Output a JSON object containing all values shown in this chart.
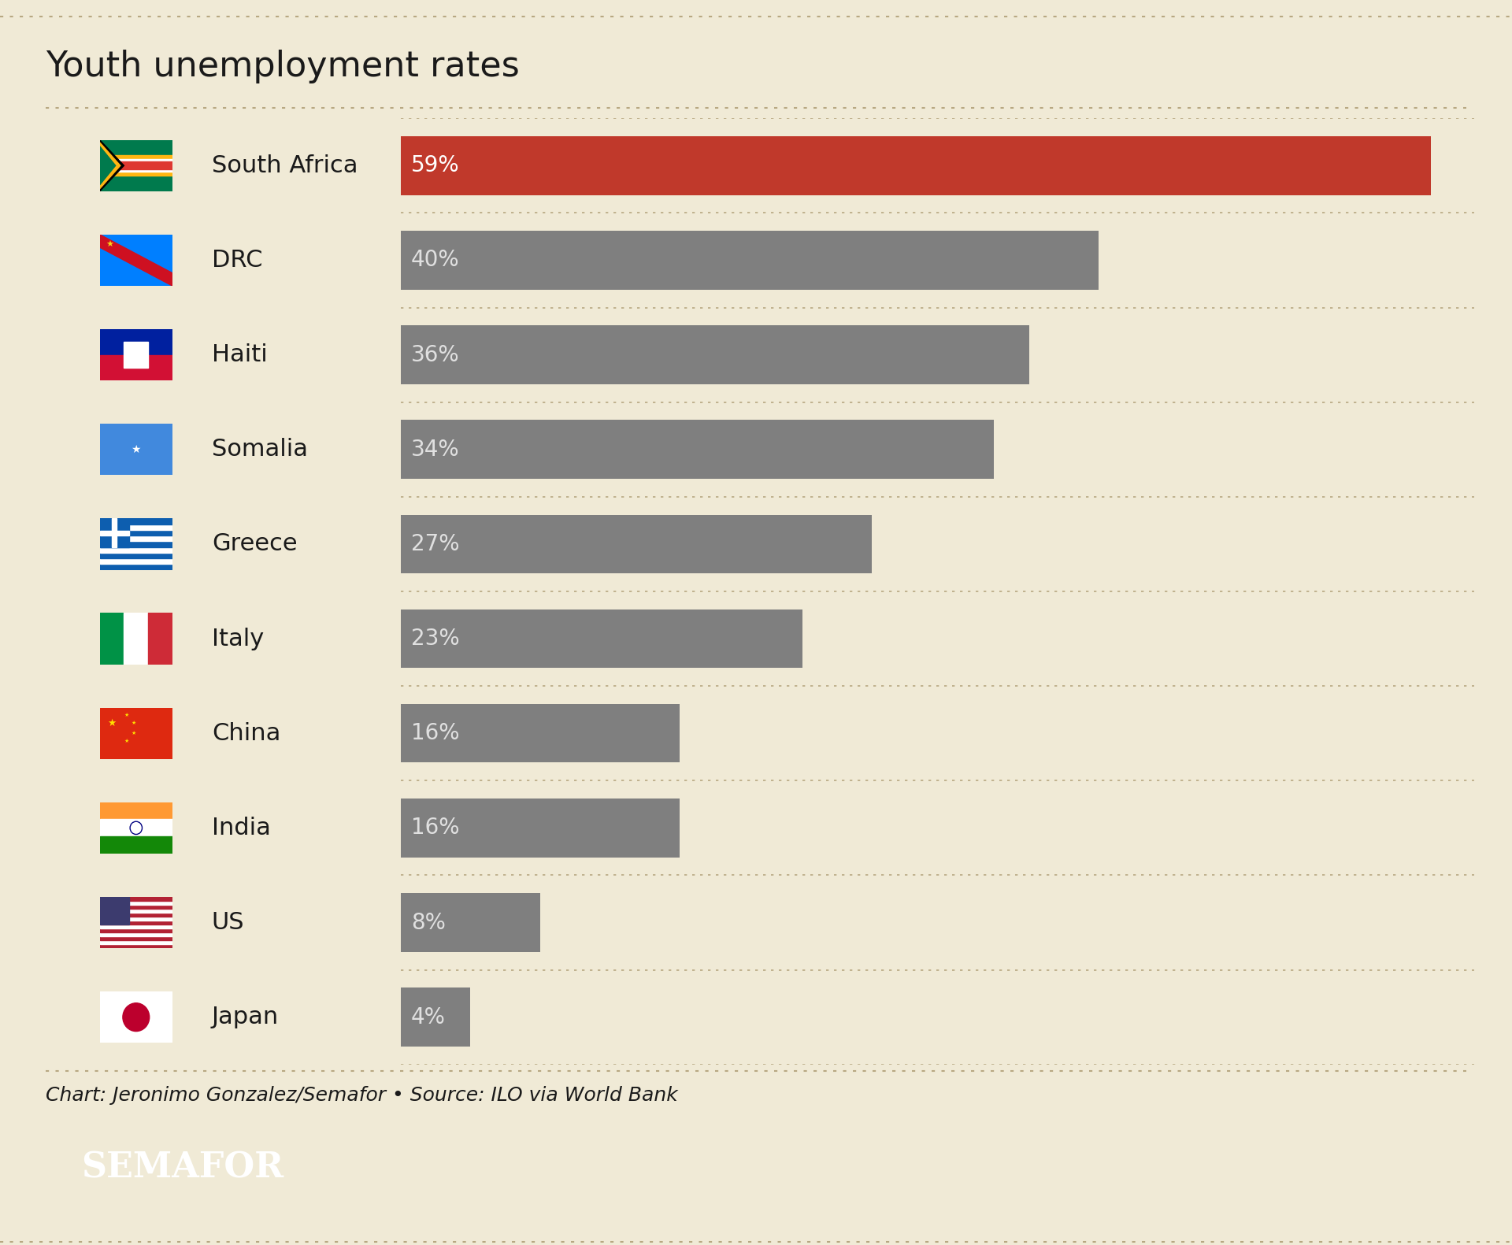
{
  "title": "Youth unemployment rates",
  "countries": [
    "South Africa",
    "DRC",
    "Haiti",
    "Somalia",
    "Greece",
    "Italy",
    "China",
    "India",
    "US",
    "Japan"
  ],
  "values": [
    59,
    40,
    36,
    34,
    27,
    23,
    16,
    16,
    8,
    4
  ],
  "bar_colors": [
    "#c0392b",
    "#7f7f7f",
    "#7f7f7f",
    "#7f7f7f",
    "#7f7f7f",
    "#7f7f7f",
    "#7f7f7f",
    "#7f7f7f",
    "#7f7f7f",
    "#7f7f7f"
  ],
  "highlight_bar_color": "#c0392b",
  "background_color": "#f0ead6",
  "text_color": "#1a1a1a",
  "bar_text_color_highlight": "#ffffff",
  "bar_text_color_default": "#e0e0e0",
  "title_fontsize": 32,
  "label_fontsize": 22,
  "value_fontsize": 20,
  "source_text": "Chart: Jeronimo Gonzalez/Semafor • Source: ILO via World Bank",
  "semafor_text": "SEMAFOR",
  "max_value": 59,
  "bar_height": 0.62,
  "dotted_line_color": "#b8a882",
  "source_fontsize": 18,
  "flag_colors": {
    "South Africa": [
      [
        "#007A4D",
        "#FFB612",
        "#DE3831",
        "#002395",
        "#FFFFFF",
        "#000000"
      ]
    ],
    "DRC": [
      [
        "#007FFF",
        "#F7D618",
        "#CE1021"
      ]
    ],
    "Haiti": [
      [
        "#00209F",
        "#D21034"
      ]
    ],
    "Somalia": [
      [
        "#4189DD",
        "#FFFFFF"
      ]
    ],
    "Greece": [
      [
        "#0D5EAF",
        "#FFFFFF"
      ]
    ],
    "Italy": [
      [
        "#009246",
        "#FFFFFF",
        "#CE2B37"
      ]
    ],
    "China": [
      [
        "#DE2910",
        "#FFDE00"
      ]
    ],
    "India": [
      [
        "#FF9933",
        "#FFFFFF",
        "#138808",
        "#000080"
      ]
    ],
    "US": [
      [
        "#B22234",
        "#FFFFFF",
        "#3C3B6E"
      ]
    ],
    "Japan": [
      [
        "#FFFFFF",
        "#BC002D"
      ]
    ]
  }
}
